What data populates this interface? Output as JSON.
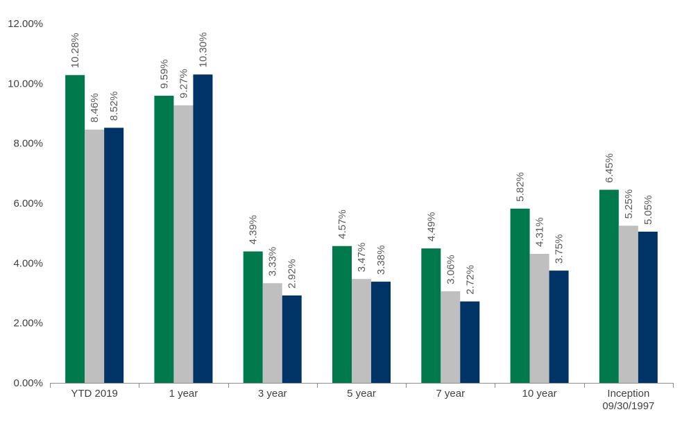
{
  "chart_data": {
    "type": "bar",
    "title": "",
    "xlabel": "",
    "ylabel": "",
    "ylim": [
      0,
      12
    ],
    "grid": false,
    "y_ticks": [
      {
        "value": 0,
        "label": "0.00%"
      },
      {
        "value": 2,
        "label": "2.00%"
      },
      {
        "value": 4,
        "label": "4.00%"
      },
      {
        "value": 6,
        "label": "6.00%"
      },
      {
        "value": 8,
        "label": "8.00%"
      },
      {
        "value": 10,
        "label": "10.00%"
      },
      {
        "value": 12,
        "label": "12.00%"
      }
    ],
    "categories": [
      {
        "lines": [
          "YTD 2019"
        ]
      },
      {
        "lines": [
          "1 year"
        ]
      },
      {
        "lines": [
          "3 year"
        ]
      },
      {
        "lines": [
          "5 year"
        ]
      },
      {
        "lines": [
          "7 year"
        ]
      },
      {
        "lines": [
          "10 year"
        ]
      },
      {
        "lines": [
          "Inception",
          "09/30/1997"
        ]
      }
    ],
    "series": [
      {
        "name": "Series 1",
        "color": "#007A4D",
        "values": [
          10.28,
          9.59,
          4.39,
          4.57,
          4.49,
          5.82,
          6.45
        ],
        "labels": [
          "10.28%",
          "9.59%",
          "4.39%",
          "4.57%",
          "4.49%",
          "5.82%",
          "6.45%"
        ]
      },
      {
        "name": "Series 2",
        "color": "#BFBFBF",
        "values": [
          8.46,
          9.27,
          3.33,
          3.47,
          3.06,
          4.31,
          5.25
        ],
        "labels": [
          "8.46%",
          "9.27%",
          "3.33%",
          "3.47%",
          "3.06%",
          "4.31%",
          "5.25%"
        ]
      },
      {
        "name": "Series 3",
        "color": "#003366",
        "values": [
          8.52,
          10.3,
          2.92,
          3.38,
          2.72,
          3.75,
          5.05
        ],
        "labels": [
          "8.52%",
          "10.30%",
          "2.92%",
          "3.38%",
          "2.72%",
          "3.75%",
          "5.05%"
        ]
      }
    ]
  }
}
